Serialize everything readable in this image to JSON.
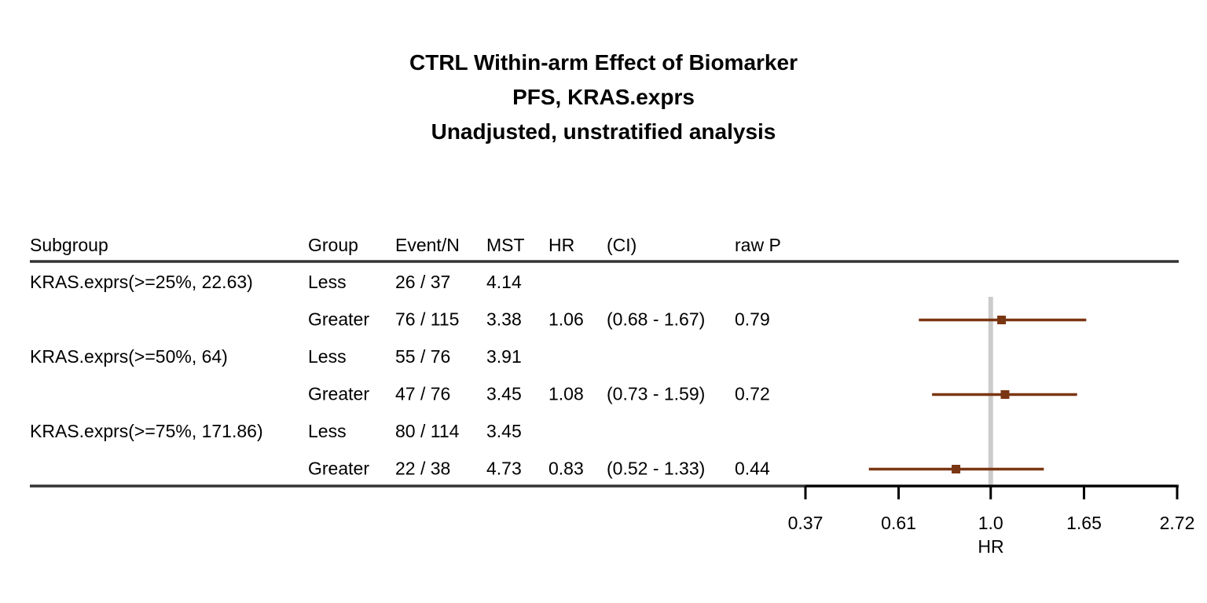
{
  "title_lines": [
    "CTRL Within-arm Effect of Biomarker",
    "PFS, KRAS.exprs",
    "Unadjusted, unstratified analysis"
  ],
  "table": {
    "headers": {
      "subgroup": "Subgroup",
      "group": "Group",
      "event_n": "Event/N",
      "mst": "MST",
      "hr": "HR",
      "ci": "(CI)",
      "raw_p": "raw P"
    },
    "rows": [
      {
        "subgroup": "KRAS.exprs(>=25%, 22.63)",
        "group": "Less",
        "event_n": "26 / 37",
        "mst": "4.14",
        "hr": "",
        "ci": "",
        "raw_p": ""
      },
      {
        "subgroup": "",
        "group": "Greater",
        "event_n": "76 / 115",
        "mst": "3.38",
        "hr": "1.06",
        "ci": "(0.68 - 1.67)",
        "raw_p": "0.79"
      },
      {
        "subgroup": "KRAS.exprs(>=50%, 64)",
        "group": "Less",
        "event_n": "55 / 76",
        "mst": "3.91",
        "hr": "",
        "ci": "",
        "raw_p": ""
      },
      {
        "subgroup": "",
        "group": "Greater",
        "event_n": "47 / 76",
        "mst": "3.45",
        "hr": "1.08",
        "ci": "(0.73 - 1.59)",
        "raw_p": "0.72"
      },
      {
        "subgroup": "KRAS.exprs(>=75%, 171.86)",
        "group": "Less",
        "event_n": "80 / 114",
        "mst": "3.45",
        "hr": "",
        "ci": "",
        "raw_p": ""
      },
      {
        "subgroup": "",
        "group": "Greater",
        "event_n": "22 / 38",
        "mst": "4.73",
        "hr": "0.83",
        "ci": "(0.52 - 1.33)",
        "raw_p": "0.44"
      }
    ]
  },
  "chart_data": {
    "type": "forest",
    "scale": "log",
    "xlabel": "HR",
    "xlim": [
      0.37,
      2.72
    ],
    "ticks": [
      {
        "value": 0.37,
        "label": "0.37"
      },
      {
        "value": 0.61,
        "label": "0.61"
      },
      {
        "value": 1.0,
        "label": "1.0"
      },
      {
        "value": 1.65,
        "label": "1.65"
      },
      {
        "value": 2.72,
        "label": "2.72"
      }
    ],
    "reference_line": 1.0,
    "estimates": [
      {
        "row": 1,
        "hr": 1.06,
        "lower": 0.68,
        "upper": 1.67
      },
      {
        "row": 3,
        "hr": 1.08,
        "lower": 0.73,
        "upper": 1.59
      },
      {
        "row": 5,
        "hr": 0.83,
        "lower": 0.52,
        "upper": 1.33
      }
    ],
    "colors": {
      "estimate": "#7a3612",
      "reference": "#cccccc",
      "rule": "#333333",
      "axis": "#000000"
    }
  }
}
